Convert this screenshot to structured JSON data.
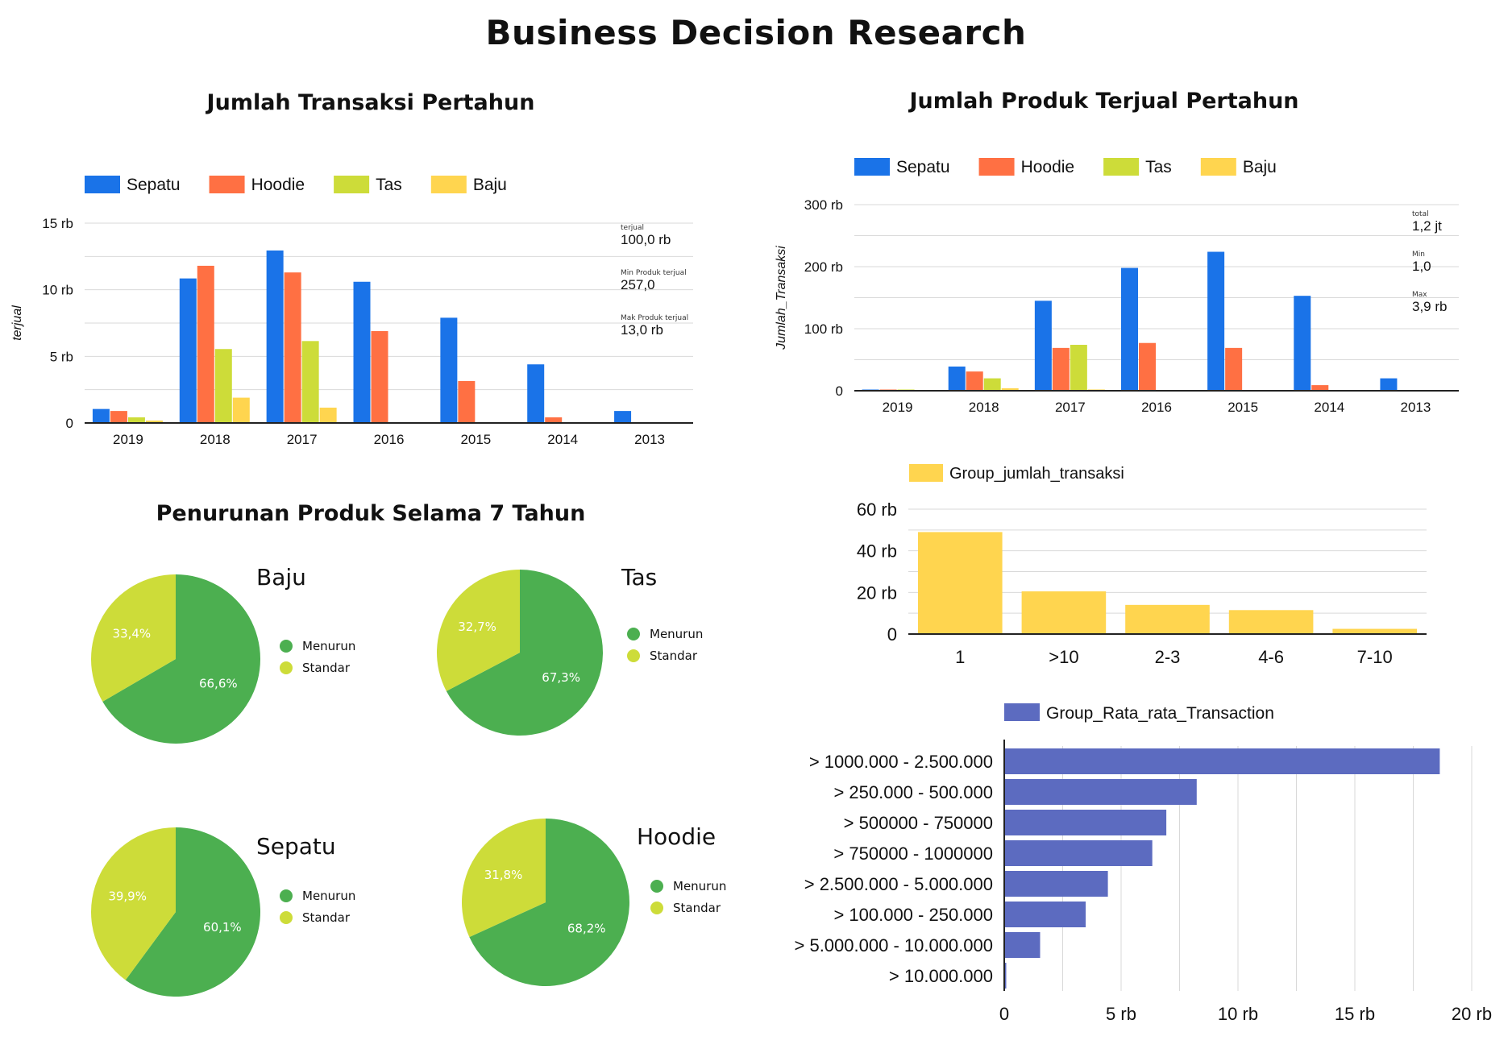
{
  "page": {
    "title": "Business Decision Research"
  },
  "colors": {
    "sepatu": "#1a73e8",
    "hoodie": "#ff7043",
    "tas": "#cddc39",
    "baju": "#ffd54f",
    "menurun": "#4caf50",
    "standar": "#cddc39",
    "transaksi": "#ffd54f",
    "rata": "#5c6bc0",
    "grid": "#d9d9d9",
    "axis": "#222222"
  },
  "chart_data": [
    {
      "id": "transaksi-pertahun",
      "type": "bar",
      "title": "Jumlah Transaksi Pertahun",
      "ylabel": "terjual",
      "categories": [
        "2019",
        "2018",
        "2017",
        "2016",
        "2015",
        "2014",
        "2013"
      ],
      "ylim": [
        0,
        15000
      ],
      "yticks": [
        {
          "v": 0,
          "label": "0"
        },
        {
          "v": 5000,
          "label": "5 rb"
        },
        {
          "v": 10000,
          "label": "10 rb"
        },
        {
          "v": 15000,
          "label": "15 rb"
        }
      ],
      "grid": true,
      "legend_position": "top",
      "series": [
        {
          "name": "Sepatu",
          "color_key": "sepatu",
          "values": [
            1050,
            10850,
            12950,
            10600,
            7900,
            4400,
            900
          ]
        },
        {
          "name": "Hoodie",
          "color_key": "hoodie",
          "values": [
            900,
            11800,
            11300,
            6900,
            3150,
            420,
            0
          ]
        },
        {
          "name": "Tas",
          "color_key": "tas",
          "values": [
            420,
            5550,
            6150,
            0,
            0,
            0,
            0
          ]
        },
        {
          "name": "Baju",
          "color_key": "baju",
          "values": [
            180,
            1900,
            1150,
            0,
            0,
            0,
            0
          ]
        }
      ],
      "stats": [
        {
          "caption": "terjual",
          "value": "100,0 rb"
        },
        {
          "caption": "Min Produk terjual",
          "value": "257,0"
        },
        {
          "caption": "Mak Produk terjual",
          "value": "13,0 rb"
        }
      ]
    },
    {
      "id": "produk-terjual-pertahun",
      "type": "bar",
      "title": "Jumlah Produk Terjual Pertahun",
      "ylabel": "Jumlah_Transaksi",
      "categories": [
        "2019",
        "2018",
        "2017",
        "2016",
        "2015",
        "2014",
        "2013"
      ],
      "ylim": [
        0,
        300000
      ],
      "yticks": [
        {
          "v": 0,
          "label": "0"
        },
        {
          "v": 100000,
          "label": "100 rb"
        },
        {
          "v": 200000,
          "label": "200 rb"
        },
        {
          "v": 300000,
          "label": "300 rb"
        }
      ],
      "grid": true,
      "legend_position": "top",
      "series": [
        {
          "name": "Sepatu",
          "color_key": "sepatu",
          "values": [
            300,
            39000,
            145000,
            198000,
            224000,
            153000,
            20000
          ]
        },
        {
          "name": "Hoodie",
          "color_key": "hoodie",
          "values": [
            200,
            31000,
            69000,
            77000,
            69000,
            9000,
            0
          ]
        },
        {
          "name": "Tas",
          "color_key": "tas",
          "values": [
            100,
            20000,
            74000,
            0,
            0,
            0,
            0
          ]
        },
        {
          "name": "Baju",
          "color_key": "baju",
          "values": [
            0,
            4000,
            2000,
            0,
            0,
            0,
            0
          ]
        }
      ],
      "stats": [
        {
          "caption": "total",
          "value": "1,2 jt"
        },
        {
          "caption": "Min",
          "value": "1,0"
        },
        {
          "caption": "Max",
          "value": "3,9 rb"
        }
      ]
    },
    {
      "id": "penurunan-produk",
      "type": "pie",
      "title": "Penurunan Produk Selama 7 Tahun",
      "legend": [
        "Menurun",
        "Standar"
      ],
      "pies": [
        {
          "name": "Baju",
          "menurun": 66.6,
          "standar": 33.4,
          "menurun_label": "66,6%",
          "standar_label": "33,4%"
        },
        {
          "name": "Tas",
          "menurun": 67.3,
          "standar": 32.7,
          "menurun_label": "67,3%",
          "standar_label": "32,7%"
        },
        {
          "name": "Sepatu",
          "menurun": 60.1,
          "standar": 39.9,
          "menurun_label": "60,1%",
          "standar_label": "39,9%"
        },
        {
          "name": "Hoodie",
          "menurun": 68.2,
          "standar": 31.8,
          "menurun_label": "68,2%",
          "standar_label": "31,8%"
        }
      ]
    },
    {
      "id": "group-jumlah-transaksi",
      "type": "bar",
      "series_name": "Group_jumlah_transaksi",
      "categories": [
        "1",
        ">10",
        "2-3",
        "4-6",
        "7-10"
      ],
      "values": [
        49000,
        20500,
        14000,
        11500,
        2500
      ],
      "ylim": [
        0,
        60000
      ],
      "yticks": [
        {
          "v": 0,
          "label": "0"
        },
        {
          "v": 20000,
          "label": "20 rb"
        },
        {
          "v": 40000,
          "label": "40 rb"
        },
        {
          "v": 60000,
          "label": "60 rb"
        }
      ],
      "grid": true,
      "legend_position": "top"
    },
    {
      "id": "group-rata-rata-transaction",
      "type": "bar",
      "orientation": "horizontal",
      "series_name": "Group_Rata_rata_Transaction",
      "categories": [
        "> 1000.000 - 2.500.000",
        "> 250.000 - 500.000",
        "> 500000 - 750000",
        "> 750000 - 1000000",
        "> 2.500.000 - 5.000.000",
        "> 100.000 - 250.000",
        "> 5.000.000 - 10.000.000",
        "> 10.000.000"
      ],
      "values": [
        18600,
        8200,
        6900,
        6300,
        4400,
        3450,
        1500,
        50
      ],
      "xlim": [
        0,
        20000
      ],
      "xticks": [
        {
          "v": 0,
          "label": "0"
        },
        {
          "v": 5000,
          "label": "5 rb"
        },
        {
          "v": 10000,
          "label": "10 rb"
        },
        {
          "v": 15000,
          "label": "15 rb"
        },
        {
          "v": 20000,
          "label": "20 rb"
        }
      ],
      "grid": true,
      "legend_position": "top"
    }
  ]
}
